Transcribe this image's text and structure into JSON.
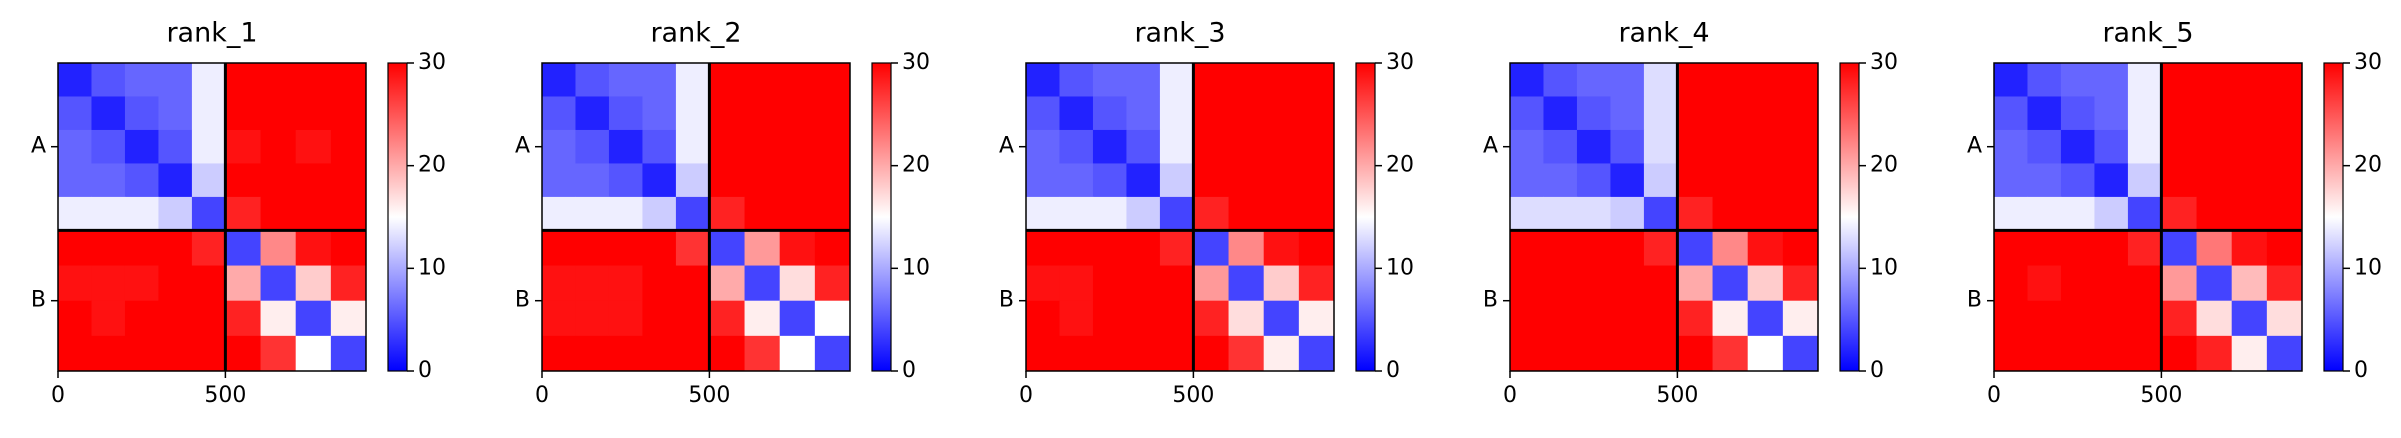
{
  "chart_data": [
    {
      "type": "heatmap",
      "title": "rank_1",
      "cmap": "bwr",
      "xlim": [
        0,
        920
      ],
      "ylim": [
        920,
        0
      ],
      "xticks": [
        0,
        500
      ],
      "yticks": [
        {
          "value": 250,
          "label": "A"
        },
        {
          "value": 710,
          "label": "B"
        }
      ],
      "chain_breaks": [
        500
      ],
      "bins": [
        0,
        100,
        200,
        300,
        400,
        500,
        605,
        710,
        815,
        920
      ],
      "zlim": [
        0,
        30
      ],
      "colorbar_ticks": [
        0,
        10,
        20,
        30
      ],
      "z": [
        [
          2,
          5,
          6,
          6,
          14,
          30,
          30,
          30,
          30
        ],
        [
          5,
          2,
          5,
          6,
          14,
          30,
          30,
          30,
          30
        ],
        [
          6,
          5,
          2,
          5,
          14,
          29,
          30,
          29,
          30
        ],
        [
          6,
          6,
          5,
          2,
          12,
          30,
          30,
          30,
          30
        ],
        [
          14,
          14,
          14,
          12,
          4,
          28,
          30,
          30,
          30
        ],
        [
          30,
          30,
          30,
          30,
          28,
          4,
          22,
          29,
          30
        ],
        [
          29,
          29,
          29,
          30,
          30,
          20,
          4,
          18,
          28
        ],
        [
          30,
          29,
          30,
          30,
          30,
          28,
          16,
          4,
          16
        ],
        [
          30,
          30,
          30,
          30,
          30,
          30,
          27,
          15,
          4
        ]
      ]
    },
    {
      "type": "heatmap",
      "title": "rank_2",
      "cmap": "bwr",
      "xlim": [
        0,
        920
      ],
      "ylim": [
        920,
        0
      ],
      "xticks": [
        0,
        500
      ],
      "yticks": [
        {
          "value": 250,
          "label": "A"
        },
        {
          "value": 710,
          "label": "B"
        }
      ],
      "chain_breaks": [
        500
      ],
      "bins": [
        0,
        100,
        200,
        300,
        400,
        500,
        605,
        710,
        815,
        920
      ],
      "zlim": [
        0,
        30
      ],
      "colorbar_ticks": [
        0,
        10,
        20,
        30
      ],
      "z": [
        [
          2,
          5,
          6,
          6,
          14,
          30,
          30,
          30,
          30
        ],
        [
          5,
          2,
          5,
          6,
          14,
          30,
          30,
          30,
          30
        ],
        [
          6,
          5,
          2,
          5,
          14,
          30,
          30,
          30,
          30
        ],
        [
          6,
          6,
          5,
          2,
          12,
          30,
          30,
          30,
          30
        ],
        [
          14,
          14,
          14,
          12,
          4,
          28,
          30,
          30,
          30
        ],
        [
          30,
          30,
          30,
          30,
          27,
          4,
          21,
          29,
          30
        ],
        [
          29,
          29,
          29,
          30,
          30,
          20,
          4,
          17,
          28
        ],
        [
          29,
          29,
          29,
          30,
          30,
          28,
          16,
          4,
          15
        ],
        [
          30,
          30,
          30,
          30,
          30,
          30,
          27,
          15,
          4
        ]
      ]
    },
    {
      "type": "heatmap",
      "title": "rank_3",
      "cmap": "bwr",
      "xlim": [
        0,
        920
      ],
      "ylim": [
        920,
        0
      ],
      "xticks": [
        0,
        500
      ],
      "yticks": [
        {
          "value": 250,
          "label": "A"
        },
        {
          "value": 710,
          "label": "B"
        }
      ],
      "chain_breaks": [
        500
      ],
      "bins": [
        0,
        100,
        200,
        300,
        400,
        500,
        605,
        710,
        815,
        920
      ],
      "zlim": [
        0,
        30
      ],
      "colorbar_ticks": [
        0,
        10,
        20,
        30
      ],
      "z": [
        [
          2,
          5,
          6,
          6,
          14,
          30,
          30,
          30,
          30
        ],
        [
          5,
          2,
          5,
          6,
          14,
          30,
          30,
          30,
          30
        ],
        [
          6,
          5,
          2,
          5,
          14,
          30,
          30,
          30,
          30
        ],
        [
          6,
          6,
          5,
          2,
          12,
          30,
          30,
          30,
          30
        ],
        [
          14,
          14,
          14,
          12,
          4,
          28,
          30,
          30,
          30
        ],
        [
          30,
          30,
          30,
          30,
          28,
          4,
          22,
          29,
          30
        ],
        [
          29,
          29,
          30,
          30,
          30,
          21,
          4,
          18,
          28
        ],
        [
          30,
          29,
          30,
          30,
          30,
          28,
          17,
          4,
          16
        ],
        [
          30,
          30,
          30,
          30,
          30,
          30,
          27,
          16,
          4
        ]
      ]
    },
    {
      "type": "heatmap",
      "title": "rank_4",
      "cmap": "bwr",
      "xlim": [
        0,
        920
      ],
      "ylim": [
        920,
        0
      ],
      "xticks": [
        0,
        500
      ],
      "yticks": [
        {
          "value": 250,
          "label": "A"
        },
        {
          "value": 710,
          "label": "B"
        }
      ],
      "chain_breaks": [
        500
      ],
      "bins": [
        0,
        100,
        200,
        300,
        400,
        500,
        605,
        710,
        815,
        920
      ],
      "zlim": [
        0,
        30
      ],
      "colorbar_ticks": [
        0,
        10,
        20,
        30
      ],
      "z": [
        [
          2,
          5,
          6,
          6,
          13,
          30,
          30,
          30,
          30
        ],
        [
          5,
          2,
          5,
          6,
          13,
          30,
          30,
          30,
          30
        ],
        [
          6,
          5,
          2,
          5,
          13,
          30,
          30,
          30,
          30
        ],
        [
          6,
          6,
          5,
          2,
          12,
          30,
          30,
          30,
          30
        ],
        [
          13,
          13,
          13,
          12,
          4,
          28,
          30,
          30,
          30
        ],
        [
          30,
          30,
          30,
          30,
          28,
          4,
          22,
          29,
          30
        ],
        [
          30,
          30,
          30,
          30,
          30,
          20,
          4,
          18,
          28
        ],
        [
          30,
          30,
          30,
          30,
          30,
          28,
          16,
          4,
          16
        ],
        [
          30,
          30,
          30,
          30,
          30,
          30,
          27,
          15,
          4
        ]
      ]
    },
    {
      "type": "heatmap",
      "title": "rank_5",
      "cmap": "bwr",
      "xlim": [
        0,
        920
      ],
      "ylim": [
        920,
        0
      ],
      "xticks": [
        0,
        500
      ],
      "yticks": [
        {
          "value": 250,
          "label": "A"
        },
        {
          "value": 710,
          "label": "B"
        }
      ],
      "chain_breaks": [
        500
      ],
      "bins": [
        0,
        100,
        200,
        300,
        400,
        500,
        605,
        710,
        815,
        920
      ],
      "zlim": [
        0,
        30
      ],
      "colorbar_ticks": [
        0,
        10,
        20,
        30
      ],
      "z": [
        [
          2,
          5,
          6,
          6,
          14,
          30,
          30,
          30,
          30
        ],
        [
          5,
          2,
          5,
          6,
          14,
          30,
          30,
          30,
          30
        ],
        [
          6,
          5,
          2,
          5,
          14,
          30,
          30,
          30,
          30
        ],
        [
          6,
          6,
          5,
          2,
          12,
          30,
          30,
          30,
          30
        ],
        [
          14,
          14,
          14,
          12,
          4,
          28,
          30,
          30,
          30
        ],
        [
          30,
          30,
          30,
          30,
          28,
          4,
          23,
          29,
          30
        ],
        [
          30,
          29,
          30,
          30,
          30,
          21,
          4,
          19,
          28
        ],
        [
          30,
          30,
          30,
          30,
          30,
          28,
          17,
          4,
          17
        ],
        [
          30,
          30,
          30,
          30,
          30,
          30,
          28,
          16,
          4
        ]
      ]
    }
  ]
}
